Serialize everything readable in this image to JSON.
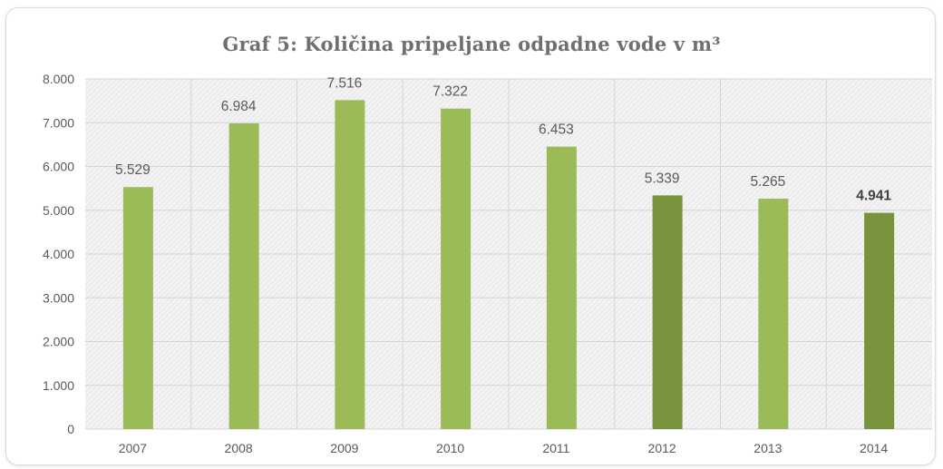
{
  "chart_data": {
    "type": "bar",
    "title": "Graf 5: Količina pripeljane odpadne vode v m³",
    "xlabel": "",
    "ylabel": "",
    "categories": [
      "2007",
      "2008",
      "2009",
      "2010",
      "2011",
      "2012",
      "2013",
      "2014"
    ],
    "values": [
      5529,
      6984,
      7516,
      7322,
      6453,
      5339,
      5265,
      4941
    ],
    "value_labels": [
      "5.529",
      "6.984",
      "7.516",
      "7.322",
      "6.453",
      "5.339",
      "5.265",
      "4.941"
    ],
    "bold_labels": [
      false,
      false,
      false,
      false,
      false,
      false,
      false,
      true
    ],
    "ylim": [
      0,
      8000
    ],
    "yticks": [
      0,
      1000,
      2000,
      3000,
      4000,
      5000,
      6000,
      7000,
      8000
    ],
    "ytick_labels": [
      "0",
      "1.000",
      "2.000",
      "3.000",
      "4.000",
      "5.000",
      "6.000",
      "7.000",
      "8.000"
    ],
    "grid": true,
    "legend": "none",
    "bar_colors": [
      "#9bbb59",
      "#9bbb59",
      "#9bbb59",
      "#9bbb59",
      "#9bbb59",
      "#77933c",
      "#9bbb59",
      "#77933c"
    ],
    "colors": {
      "plot_background": "#ececec",
      "gridline": "#d4d4d4",
      "text": "#595959",
      "title": "#6f6f6f"
    }
  }
}
